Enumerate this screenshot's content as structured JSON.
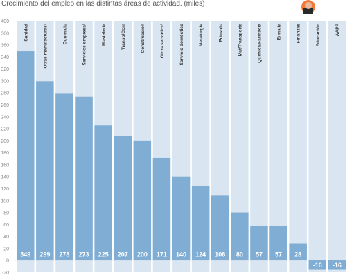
{
  "title": "Crecimiento del empleo en las distintas áreas de actividad. (miles)",
  "colors": {
    "bar": "#7fadd3",
    "column_bg": "#d9e6f2",
    "value_text": "#ffffff",
    "label_text": "#3a3a3a",
    "axis_text": "#888888",
    "zero_line": "#bcbcbc",
    "avatar_face": "#e9b99a",
    "avatar_shirt": "#2a2a2a",
    "avatar_bg": "#f07a3c"
  },
  "chart_data": {
    "type": "bar",
    "title": "Crecimiento del empleo en las distintas áreas de actividad. (miles)",
    "categories": [
      "Sanidad",
      "Otras manufacturas¹",
      "Comercio",
      "Servicios empresa²",
      "Hostelería",
      "Transp/Com",
      "Construcción",
      "Otros servicios³",
      "Servicio doméstico",
      "Metalúrgia",
      "Primario",
      "Mat/Transporte",
      "Química/Farmacia",
      "Energía",
      "Finanzas",
      "Educación",
      "AAPP"
    ],
    "values": [
      349,
      299,
      278,
      273,
      225,
      207,
      200,
      171,
      140,
      124,
      108,
      80,
      57,
      57,
      28,
      -16,
      -16
    ],
    "value_labels": [
      "349",
      "299",
      "278",
      "273",
      "225",
      "207",
      "200",
      "171",
      "140",
      "124",
      "108",
      "80",
      "57",
      "57",
      "28",
      "-16",
      "-16"
    ],
    "ylim": [
      -20,
      400
    ],
    "yticks": [
      -20,
      0,
      20,
      40,
      60,
      80,
      100,
      120,
      140,
      160,
      180,
      200,
      220,
      240,
      260,
      280,
      300,
      320,
      340,
      360,
      380,
      400
    ],
    "ytick_labels": [
      "-20",
      "0",
      "20",
      "40",
      "60",
      "80",
      "100",
      "120",
      "140",
      "160",
      "180",
      "200",
      "220",
      "240",
      "260",
      "280",
      "300",
      "320",
      "340",
      "360",
      "380",
      "400"
    ],
    "xlabel": "",
    "ylabel": "",
    "grid": false,
    "legend": "none"
  }
}
